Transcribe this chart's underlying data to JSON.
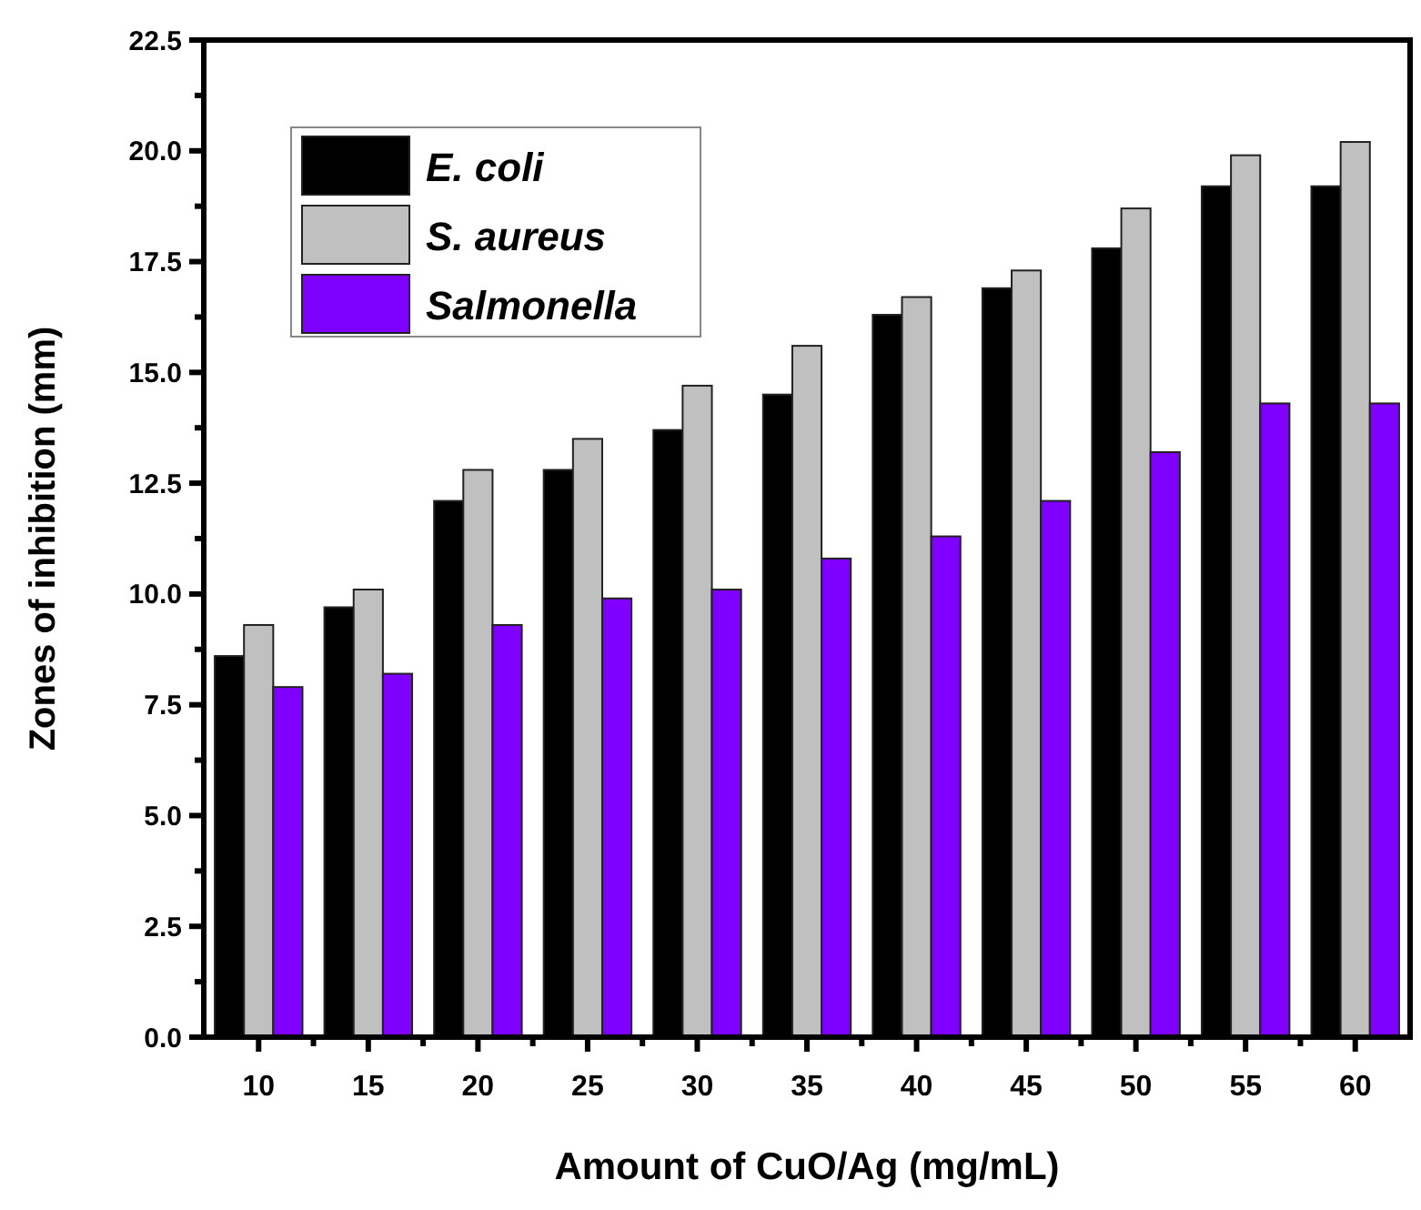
{
  "chart_data": {
    "type": "bar",
    "xlabel": "Amount of CuO/Ag (mg/mL)",
    "ylabel": "Zones of inhibition (mm)",
    "categories": [
      "10",
      "15",
      "20",
      "25",
      "30",
      "35",
      "40",
      "45",
      "50",
      "55",
      "60"
    ],
    "series": [
      {
        "name": "E. coli",
        "color": "#000000",
        "values": [
          8.6,
          9.7,
          12.1,
          12.8,
          13.7,
          14.5,
          16.3,
          16.9,
          17.8,
          19.2,
          19.2
        ]
      },
      {
        "name": "S. aureus",
        "color": "#c0c0c0",
        "values": [
          9.3,
          10.1,
          12.8,
          13.5,
          14.7,
          15.6,
          16.7,
          17.3,
          18.7,
          19.9,
          20.2
        ]
      },
      {
        "name": "Salmonella",
        "color": "#8000ff",
        "values": [
          7.9,
          8.2,
          9.3,
          9.9,
          10.1,
          10.8,
          11.3,
          12.1,
          13.2,
          14.3,
          14.3
        ]
      }
    ],
    "ylim": [
      0,
      22.5
    ],
    "yticks": [
      {
        "value": 0,
        "label": "0.0"
      },
      {
        "value": 1.25,
        "label": null
      },
      {
        "value": 2.5,
        "label": "2.5"
      },
      {
        "value": 3.75,
        "label": null
      },
      {
        "value": 5,
        "label": "5.0"
      },
      {
        "value": 6.25,
        "label": null
      },
      {
        "value": 7.5,
        "label": "7.5"
      },
      {
        "value": 8.75,
        "label": null
      },
      {
        "value": 10,
        "label": "10.0"
      },
      {
        "value": 11.25,
        "label": null
      },
      {
        "value": 12.5,
        "label": "12.5"
      },
      {
        "value": 13.75,
        "label": null
      },
      {
        "value": 15,
        "label": "15.0"
      },
      {
        "value": 16.25,
        "label": null
      },
      {
        "value": 17.5,
        "label": "17.5"
      },
      {
        "value": 18.75,
        "label": null
      },
      {
        "value": 20,
        "label": "20.0"
      },
      {
        "value": 21.25,
        "label": null
      },
      {
        "value": 22.5,
        "label": "22.5"
      }
    ],
    "grid": false,
    "legend": "top left"
  }
}
